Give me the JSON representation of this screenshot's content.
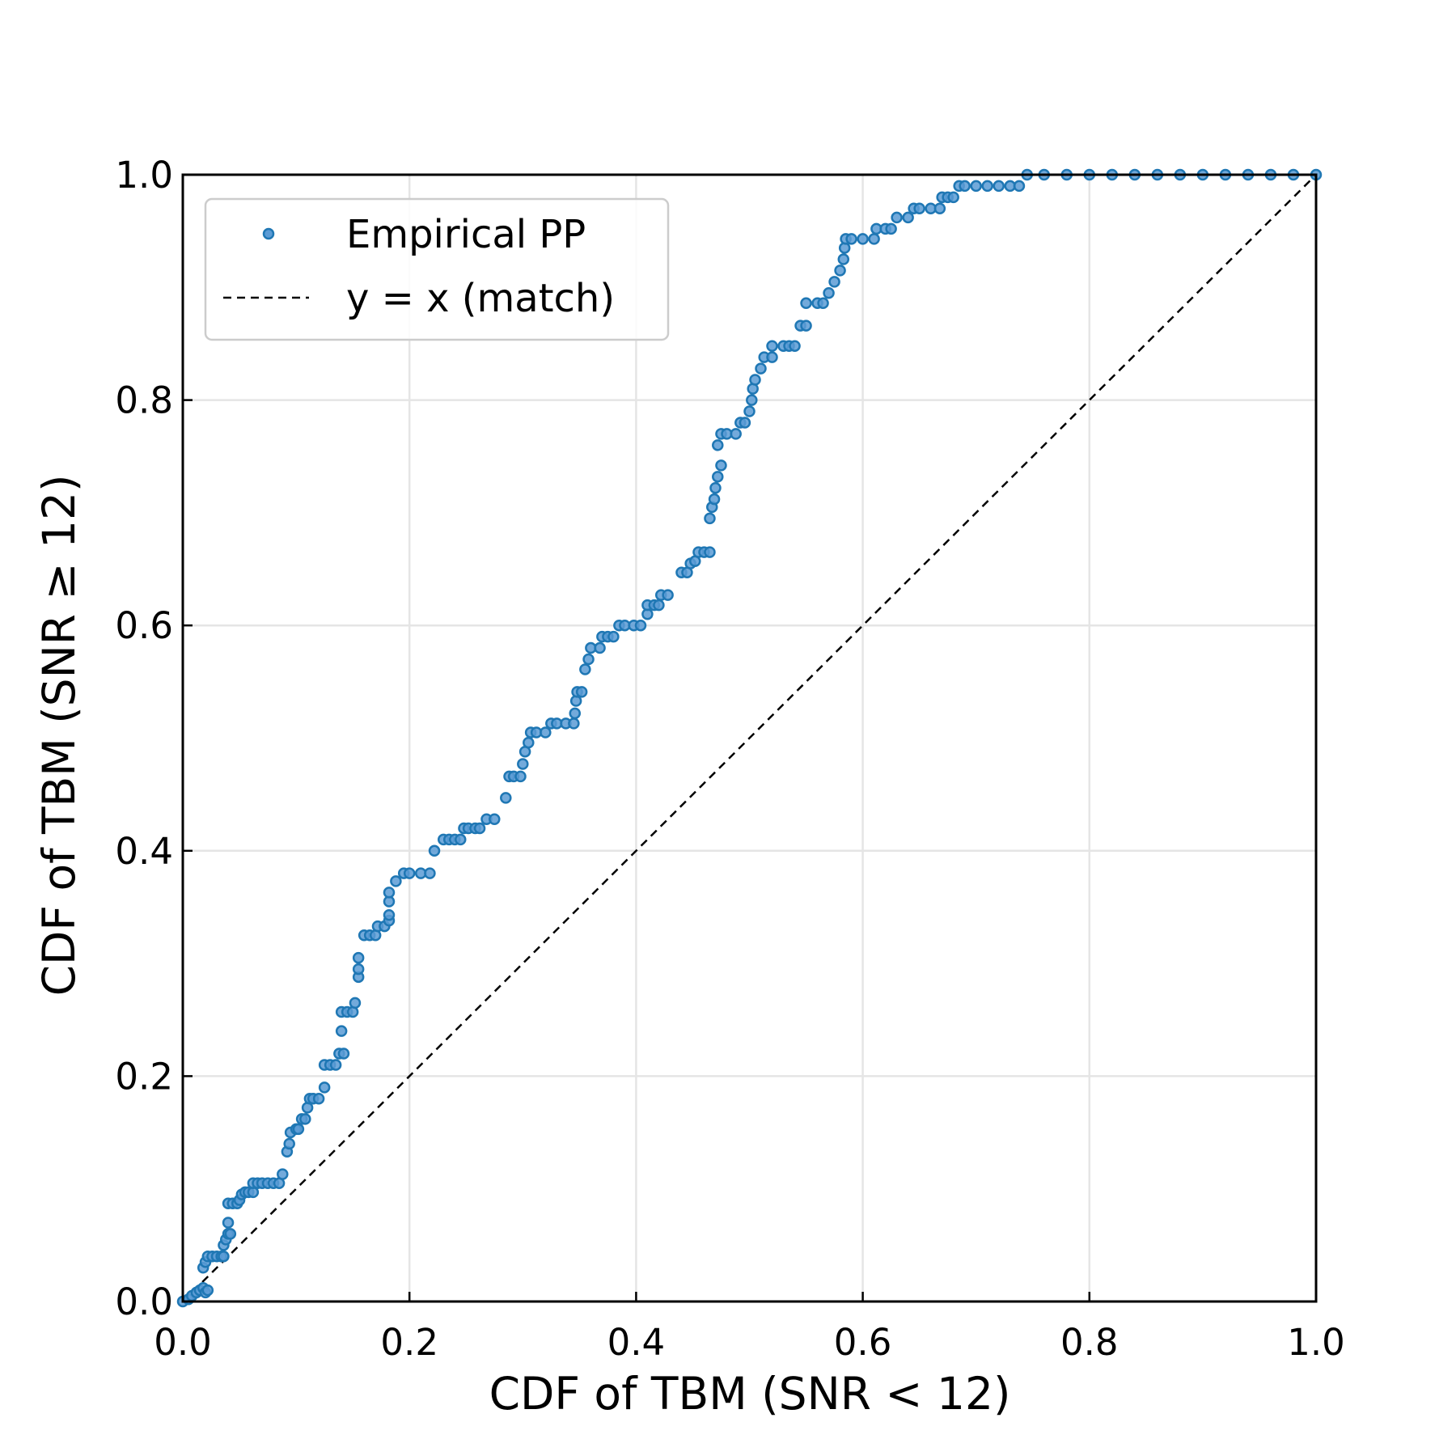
{
  "chart_data": {
    "type": "scatter",
    "title": "",
    "xlabel": "CDF of TBM (SNR < 12)",
    "ylabel": "CDF of TBM (SNR ≥ 12)",
    "xlim": [
      0.0,
      1.0
    ],
    "ylim": [
      0.0,
      1.0
    ],
    "x_ticks": [
      "0.0",
      "0.2",
      "0.4",
      "0.6",
      "0.8",
      "1.0"
    ],
    "y_ticks": [
      "0.0",
      "0.2",
      "0.4",
      "0.6",
      "0.8",
      "1.0"
    ],
    "grid": true,
    "legend": {
      "position": "top-left",
      "entries": [
        "Empirical PP",
        "y = x (match)"
      ]
    },
    "colors": {
      "points": "#1f77b4",
      "reference": "#000000",
      "grid": "#e5e5e5"
    },
    "series": [
      {
        "name": "Empirical PP",
        "kind": "points",
        "points": [
          [
            0.0,
            0.0
          ],
          [
            0.005,
            0.002
          ],
          [
            0.008,
            0.005
          ],
          [
            0.012,
            0.008
          ],
          [
            0.015,
            0.01
          ],
          [
            0.018,
            0.012
          ],
          [
            0.02,
            0.008
          ],
          [
            0.022,
            0.01
          ],
          [
            0.018,
            0.03
          ],
          [
            0.02,
            0.035
          ],
          [
            0.022,
            0.04
          ],
          [
            0.026,
            0.04
          ],
          [
            0.03,
            0.04
          ],
          [
            0.034,
            0.04
          ],
          [
            0.036,
            0.04
          ],
          [
            0.036,
            0.05
          ],
          [
            0.038,
            0.055
          ],
          [
            0.04,
            0.06
          ],
          [
            0.042,
            0.06
          ],
          [
            0.04,
            0.07
          ],
          [
            0.04,
            0.087
          ],
          [
            0.044,
            0.087
          ],
          [
            0.048,
            0.087
          ],
          [
            0.05,
            0.09
          ],
          [
            0.052,
            0.095
          ],
          [
            0.055,
            0.097
          ],
          [
            0.058,
            0.097
          ],
          [
            0.062,
            0.097
          ],
          [
            0.062,
            0.105
          ],
          [
            0.066,
            0.105
          ],
          [
            0.07,
            0.105
          ],
          [
            0.075,
            0.105
          ],
          [
            0.08,
            0.105
          ],
          [
            0.085,
            0.105
          ],
          [
            0.088,
            0.113
          ],
          [
            0.092,
            0.133
          ],
          [
            0.094,
            0.14
          ],
          [
            0.095,
            0.15
          ],
          [
            0.1,
            0.153
          ],
          [
            0.102,
            0.153
          ],
          [
            0.105,
            0.162
          ],
          [
            0.108,
            0.162
          ],
          [
            0.11,
            0.172
          ],
          [
            0.112,
            0.18
          ],
          [
            0.115,
            0.18
          ],
          [
            0.12,
            0.18
          ],
          [
            0.125,
            0.19
          ],
          [
            0.125,
            0.21
          ],
          [
            0.13,
            0.21
          ],
          [
            0.135,
            0.21
          ],
          [
            0.138,
            0.22
          ],
          [
            0.142,
            0.22
          ],
          [
            0.14,
            0.24
          ],
          [
            0.14,
            0.257
          ],
          [
            0.145,
            0.257
          ],
          [
            0.15,
            0.257
          ],
          [
            0.152,
            0.265
          ],
          [
            0.155,
            0.288
          ],
          [
            0.155,
            0.295
          ],
          [
            0.155,
            0.305
          ],
          [
            0.16,
            0.325
          ],
          [
            0.165,
            0.325
          ],
          [
            0.17,
            0.325
          ],
          [
            0.172,
            0.333
          ],
          [
            0.178,
            0.333
          ],
          [
            0.182,
            0.338
          ],
          [
            0.182,
            0.343
          ],
          [
            0.182,
            0.355
          ],
          [
            0.182,
            0.363
          ],
          [
            0.188,
            0.373
          ],
          [
            0.195,
            0.38
          ],
          [
            0.2,
            0.38
          ],
          [
            0.21,
            0.38
          ],
          [
            0.218,
            0.38
          ],
          [
            0.222,
            0.4
          ],
          [
            0.23,
            0.41
          ],
          [
            0.235,
            0.41
          ],
          [
            0.24,
            0.41
          ],
          [
            0.245,
            0.41
          ],
          [
            0.248,
            0.42
          ],
          [
            0.252,
            0.42
          ],
          [
            0.258,
            0.42
          ],
          [
            0.262,
            0.42
          ],
          [
            0.268,
            0.428
          ],
          [
            0.275,
            0.428
          ],
          [
            0.285,
            0.447
          ],
          [
            0.288,
            0.466
          ],
          [
            0.292,
            0.466
          ],
          [
            0.298,
            0.466
          ],
          [
            0.3,
            0.477
          ],
          [
            0.302,
            0.488
          ],
          [
            0.305,
            0.496
          ],
          [
            0.307,
            0.505
          ],
          [
            0.312,
            0.505
          ],
          [
            0.32,
            0.505
          ],
          [
            0.325,
            0.513
          ],
          [
            0.33,
            0.513
          ],
          [
            0.338,
            0.513
          ],
          [
            0.345,
            0.513
          ],
          [
            0.346,
            0.522
          ],
          [
            0.347,
            0.533
          ],
          [
            0.348,
            0.541
          ],
          [
            0.352,
            0.541
          ],
          [
            0.355,
            0.561
          ],
          [
            0.358,
            0.57
          ],
          [
            0.36,
            0.58
          ],
          [
            0.368,
            0.58
          ],
          [
            0.37,
            0.59
          ],
          [
            0.375,
            0.59
          ],
          [
            0.38,
            0.59
          ],
          [
            0.385,
            0.6
          ],
          [
            0.39,
            0.6
          ],
          [
            0.398,
            0.6
          ],
          [
            0.404,
            0.6
          ],
          [
            0.41,
            0.61
          ],
          [
            0.41,
            0.618
          ],
          [
            0.416,
            0.618
          ],
          [
            0.42,
            0.618
          ],
          [
            0.422,
            0.627
          ],
          [
            0.428,
            0.627
          ],
          [
            0.44,
            0.647
          ],
          [
            0.445,
            0.647
          ],
          [
            0.448,
            0.655
          ],
          [
            0.452,
            0.657
          ],
          [
            0.455,
            0.665
          ],
          [
            0.46,
            0.665
          ],
          [
            0.465,
            0.665
          ],
          [
            0.465,
            0.695
          ],
          [
            0.467,
            0.705
          ],
          [
            0.469,
            0.712
          ],
          [
            0.47,
            0.722
          ],
          [
            0.472,
            0.732
          ],
          [
            0.475,
            0.742
          ],
          [
            0.472,
            0.76
          ],
          [
            0.475,
            0.77
          ],
          [
            0.48,
            0.77
          ],
          [
            0.488,
            0.77
          ],
          [
            0.492,
            0.78
          ],
          [
            0.496,
            0.78
          ],
          [
            0.5,
            0.79
          ],
          [
            0.502,
            0.8
          ],
          [
            0.503,
            0.81
          ],
          [
            0.505,
            0.818
          ],
          [
            0.51,
            0.828
          ],
          [
            0.513,
            0.838
          ],
          [
            0.52,
            0.838
          ],
          [
            0.52,
            0.848
          ],
          [
            0.53,
            0.848
          ],
          [
            0.535,
            0.848
          ],
          [
            0.54,
            0.848
          ],
          [
            0.545,
            0.866
          ],
          [
            0.55,
            0.866
          ],
          [
            0.55,
            0.886
          ],
          [
            0.56,
            0.886
          ],
          [
            0.565,
            0.886
          ],
          [
            0.57,
            0.895
          ],
          [
            0.575,
            0.905
          ],
          [
            0.58,
            0.915
          ],
          [
            0.583,
            0.925
          ],
          [
            0.584,
            0.935
          ],
          [
            0.585,
            0.943
          ],
          [
            0.59,
            0.943
          ],
          [
            0.6,
            0.943
          ],
          [
            0.61,
            0.943
          ],
          [
            0.612,
            0.952
          ],
          [
            0.62,
            0.952
          ],
          [
            0.625,
            0.952
          ],
          [
            0.63,
            0.962
          ],
          [
            0.64,
            0.962
          ],
          [
            0.645,
            0.97
          ],
          [
            0.65,
            0.97
          ],
          [
            0.66,
            0.97
          ],
          [
            0.668,
            0.97
          ],
          [
            0.67,
            0.98
          ],
          [
            0.675,
            0.98
          ],
          [
            0.68,
            0.98
          ],
          [
            0.685,
            0.99
          ],
          [
            0.69,
            0.99
          ],
          [
            0.7,
            0.99
          ],
          [
            0.71,
            0.99
          ],
          [
            0.72,
            0.99
          ],
          [
            0.73,
            0.99
          ],
          [
            0.738,
            0.99
          ],
          [
            0.745,
            1.0
          ],
          [
            0.76,
            1.0
          ],
          [
            0.78,
            1.0
          ],
          [
            0.8,
            1.0
          ],
          [
            0.82,
            1.0
          ],
          [
            0.84,
            1.0
          ],
          [
            0.86,
            1.0
          ],
          [
            0.88,
            1.0
          ],
          [
            0.9,
            1.0
          ],
          [
            0.92,
            1.0
          ],
          [
            0.94,
            1.0
          ],
          [
            0.96,
            1.0
          ],
          [
            0.98,
            1.0
          ],
          [
            1.0,
            1.0
          ]
        ]
      },
      {
        "name": "y = x (match)",
        "kind": "reference-line",
        "x": [
          0.0,
          1.0
        ],
        "y": [
          0.0,
          1.0
        ]
      }
    ]
  }
}
